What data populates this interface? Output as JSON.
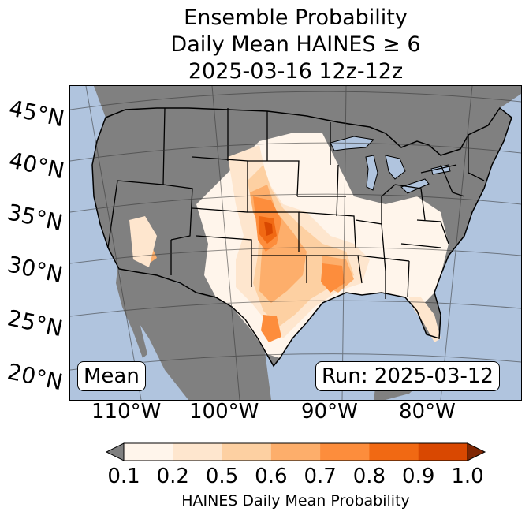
{
  "title": {
    "line1": "Ensemble Probability",
    "line2": "Daily Mean HAINES ≥ 6",
    "line3": "2025-03-16 12z-12z"
  },
  "map": {
    "latitude_labels": [
      "45°N",
      "40°N",
      "35°N",
      "30°N",
      "25°N",
      "20°N"
    ],
    "longitude_labels": [
      "110°W",
      "100°W",
      "90°W",
      "80°W"
    ],
    "stat_label": "Mean",
    "run_label": "Run: 2025-03-12",
    "colors": {
      "ocean": "#b0c4de",
      "masked_land": "#808080",
      "no_data_land": "#ffffff"
    }
  },
  "colorbar": {
    "ticks": [
      "0.1",
      "0.2",
      "0.5",
      "0.6",
      "0.7",
      "0.8",
      "0.9",
      "1.0"
    ],
    "colors": [
      "#fff5eb",
      "#fee6ce",
      "#fdd0a2",
      "#fdae6b",
      "#fd8d3c",
      "#f16913",
      "#d94801"
    ],
    "under_color": "#808080",
    "over_color": "#7f2704",
    "label": "HAINES Daily Mean Probability"
  }
}
